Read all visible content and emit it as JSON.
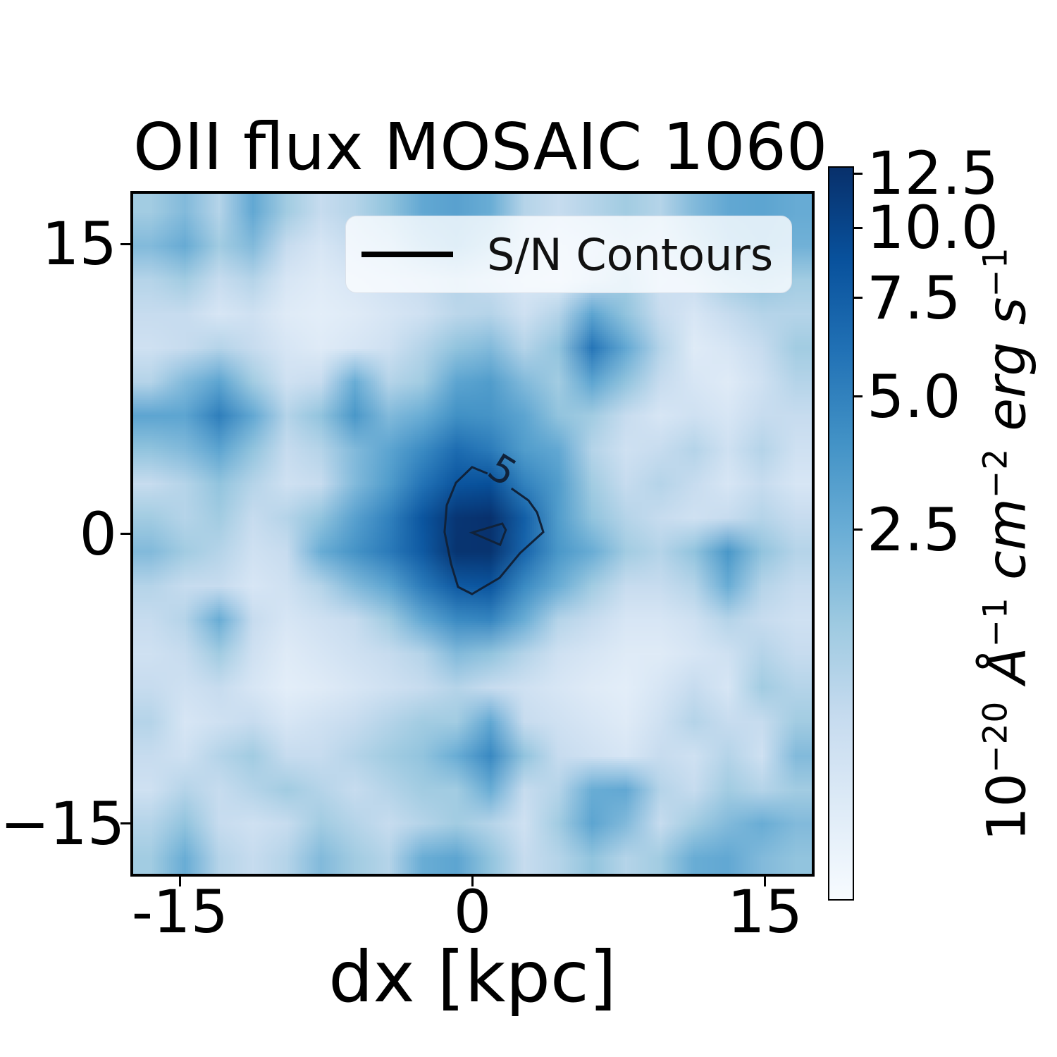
{
  "figure": {
    "title": "OII flux MOSAIC 1060",
    "background_color": "#ffffff"
  },
  "axes": {
    "xlabel": "dx [kpc]",
    "x_ticks": [
      {
        "label": "-15",
        "value": -15
      },
      {
        "label": "0",
        "value": 0
      },
      {
        "label": "15",
        "value": 15
      }
    ],
    "y_ticks": [
      {
        "label": "15",
        "value": 15
      },
      {
        "label": "0",
        "value": 0
      },
      {
        "label": "−15",
        "value": -15
      }
    ],
    "x_range": [
      -17.4,
      17.4
    ],
    "y_range": [
      -17.6,
      17.6
    ]
  },
  "legend": {
    "entries": [
      {
        "label": "S/N Contours",
        "marker": "line",
        "color": "#000000"
      }
    ]
  },
  "colorbar": {
    "tick_labels": [
      "12.5",
      "10.0",
      "7.5",
      "5.0",
      "2.5"
    ],
    "tick_values": [
      12.5,
      10.0,
      7.5,
      5.0,
      2.5
    ],
    "tick_fractions_from_top": [
      0.008,
      0.082,
      0.178,
      0.313,
      0.495
    ],
    "unit_parts": [
      {
        "text": "10",
        "italic": false,
        "sup": false
      },
      {
        "text": "−20",
        "italic": false,
        "sup": true
      },
      {
        "text": " ",
        "italic": false,
        "sup": false
      },
      {
        "text": "Å",
        "italic": true,
        "sup": false
      },
      {
        "text": "−1",
        "italic": false,
        "sup": true
      },
      {
        "text": " ",
        "italic": false,
        "sup": false
      },
      {
        "text": "cm",
        "italic": true,
        "sup": false
      },
      {
        "text": "−2",
        "italic": false,
        "sup": true
      },
      {
        "text": " ",
        "italic": false,
        "sup": false
      },
      {
        "text": "erg",
        "italic": true,
        "sup": false
      },
      {
        "text": " ",
        "italic": false,
        "sup": false
      },
      {
        "text": "s",
        "italic": true,
        "sup": false
      },
      {
        "text": "−1",
        "italic": false,
        "sup": true
      }
    ]
  },
  "chart_data": {
    "type": "heatmap",
    "title": "OII flux MOSAIC 1060",
    "xlabel": "dx [kpc]",
    "legend_label": "S/N Contours",
    "colormap": "Blues",
    "colormap_stops": [
      [
        0.0,
        "#f7fbff"
      ],
      [
        0.125,
        "#deebf7"
      ],
      [
        0.25,
        "#c6dbef"
      ],
      [
        0.375,
        "#9ecae1"
      ],
      [
        0.5,
        "#6baed6"
      ],
      [
        0.625,
        "#4292c6"
      ],
      [
        0.75,
        "#2171b5"
      ],
      [
        0.875,
        "#08519c"
      ],
      [
        1.0,
        "#08306b"
      ]
    ],
    "value_to_t_curve": [
      [
        0,
        0
      ],
      [
        2.5,
        0.505
      ],
      [
        5,
        0.687
      ],
      [
        7.5,
        0.822
      ],
      [
        10,
        0.918
      ],
      [
        12.5,
        0.992
      ],
      [
        13,
        1
      ]
    ],
    "vmax": 12.7,
    "flux_units": "1e-20 erg s^-1 cm^-2 A^-1",
    "x_extent": [
      -17.4,
      17.4
    ],
    "y_extent": [
      -17.6,
      17.6
    ],
    "grid_note": "rows top-to-bottom, 20x20 flux values read from image",
    "grid": [
      [
        1.8,
        2.2,
        1.5,
        2.8,
        1.8,
        1.2,
        1.5,
        2.0,
        2.8,
        3.2,
        2.5,
        1.5,
        1.2,
        1.5,
        1.8,
        1.5,
        2.2,
        2.8,
        3.0,
        2.6
      ],
      [
        2.2,
        2.6,
        1.8,
        2.2,
        1.2,
        0.8,
        1.2,
        1.5,
        2.2,
        2.6,
        2.0,
        1.2,
        0.8,
        1.0,
        1.4,
        1.2,
        1.8,
        2.4,
        2.8,
        2.4
      ],
      [
        1.5,
        1.8,
        1.2,
        1.5,
        0.8,
        0.6,
        0.8,
        1.0,
        1.2,
        1.5,
        1.2,
        0.8,
        0.6,
        1.2,
        1.8,
        1.0,
        1.2,
        1.8,
        2.0,
        1.8
      ],
      [
        1.2,
        1.2,
        0.8,
        1.0,
        0.6,
        0.5,
        0.6,
        0.8,
        1.0,
        1.4,
        1.5,
        1.0,
        1.5,
        3.0,
        2.0,
        1.2,
        0.8,
        1.2,
        1.5,
        1.5
      ],
      [
        1.0,
        1.2,
        1.5,
        1.2,
        0.8,
        0.6,
        0.8,
        1.0,
        1.5,
        2.0,
        2.2,
        1.5,
        2.0,
        5.8,
        2.8,
        1.5,
        0.6,
        0.8,
        1.2,
        1.8
      ],
      [
        1.5,
        2.2,
        3.0,
        1.8,
        1.0,
        1.2,
        2.5,
        1.5,
        1.8,
        3.0,
        3.5,
        2.2,
        1.8,
        3.0,
        2.0,
        1.2,
        0.8,
        0.6,
        1.0,
        1.5
      ],
      [
        3.0,
        3.0,
        5.2,
        2.8,
        1.5,
        2.0,
        3.8,
        2.2,
        2.5,
        4.2,
        4.0,
        3.0,
        2.0,
        1.8,
        1.2,
        0.8,
        1.0,
        0.8,
        1.2,
        1.2
      ],
      [
        2.0,
        2.2,
        3.0,
        2.0,
        1.2,
        1.5,
        2.2,
        3.0,
        4.5,
        6.5,
        5.5,
        3.5,
        2.8,
        1.5,
        1.0,
        1.2,
        1.5,
        1.0,
        1.5,
        1.0
      ],
      [
        1.2,
        1.5,
        2.0,
        1.5,
        1.0,
        1.2,
        2.2,
        3.5,
        6.0,
        8.5,
        9.0,
        5.0,
        3.5,
        1.8,
        1.2,
        1.5,
        1.2,
        0.8,
        1.2,
        0.8
      ],
      [
        1.8,
        1.5,
        1.8,
        1.2,
        1.5,
        2.0,
        3.2,
        5.0,
        8.5,
        12.0,
        12.7,
        7.5,
        3.5,
        2.0,
        1.5,
        1.2,
        1.0,
        1.2,
        1.5,
        1.2
      ],
      [
        2.2,
        1.8,
        1.5,
        1.0,
        1.2,
        2.5,
        4.0,
        5.5,
        8.0,
        12.3,
        12.3,
        7.0,
        3.8,
        2.5,
        1.8,
        1.5,
        2.0,
        3.8,
        2.0,
        1.5
      ],
      [
        1.5,
        1.2,
        1.2,
        0.8,
        1.0,
        1.5,
        2.2,
        3.0,
        5.5,
        8.0,
        8.5,
        4.5,
        2.5,
        1.8,
        1.2,
        1.2,
        1.5,
        2.5,
        1.5,
        1.2
      ],
      [
        1.2,
        1.5,
        2.5,
        1.2,
        0.8,
        1.0,
        1.2,
        1.8,
        2.8,
        4.5,
        4.8,
        2.5,
        1.5,
        1.2,
        0.8,
        0.8,
        1.0,
        1.5,
        1.2,
        1.0
      ],
      [
        1.0,
        1.2,
        1.8,
        1.0,
        0.6,
        0.8,
        1.0,
        1.2,
        1.5,
        2.2,
        2.0,
        1.5,
        1.0,
        0.8,
        0.6,
        0.6,
        0.8,
        1.0,
        1.5,
        1.2
      ],
      [
        1.2,
        1.0,
        1.2,
        0.8,
        0.5,
        0.6,
        0.8,
        1.0,
        1.2,
        1.5,
        1.2,
        1.0,
        0.8,
        0.6,
        0.5,
        0.8,
        1.2,
        0.8,
        1.8,
        1.5
      ],
      [
        1.5,
        0.8,
        1.0,
        1.2,
        0.8,
        1.0,
        1.2,
        1.5,
        1.8,
        1.8,
        2.8,
        1.2,
        1.0,
        0.8,
        0.6,
        1.0,
        1.5,
        1.2,
        1.2,
        1.8
      ],
      [
        1.2,
        1.0,
        1.5,
        1.8,
        1.2,
        1.2,
        1.5,
        1.8,
        2.0,
        2.5,
        4.6,
        2.0,
        1.2,
        1.0,
        0.8,
        1.2,
        1.0,
        1.5,
        1.0,
        2.2
      ],
      [
        1.0,
        1.5,
        1.2,
        1.5,
        1.8,
        1.5,
        1.2,
        1.5,
        1.8,
        1.8,
        2.5,
        1.2,
        1.5,
        2.5,
        2.8,
        1.5,
        1.2,
        1.8,
        1.5,
        1.8
      ],
      [
        1.5,
        2.0,
        1.2,
        1.0,
        1.2,
        1.8,
        1.5,
        1.2,
        1.5,
        1.8,
        1.5,
        1.0,
        1.8,
        3.0,
        2.2,
        1.2,
        1.8,
        2.2,
        2.5,
        2.2
      ],
      [
        1.8,
        2.5,
        1.5,
        1.2,
        1.5,
        2.2,
        1.8,
        1.5,
        2.5,
        3.0,
        2.0,
        1.2,
        1.5,
        2.0,
        1.5,
        1.8,
        2.5,
        2.8,
        2.2,
        2.0
      ]
    ],
    "contours": {
      "label": "5",
      "levels_sn": [
        5,
        10
      ],
      "line_color": "#10223a",
      "outer_polyline_kpc": [
        [
          0.77,
          3.12
        ],
        [
          -0.02,
          3.45
        ],
        [
          -0.85,
          2.64
        ],
        [
          -1.32,
          1.48
        ],
        [
          -1.43,
          0.09
        ],
        [
          -1.1,
          -1.55
        ],
        [
          -0.74,
          -2.75
        ],
        [
          -0.02,
          -3.12
        ],
        [
          1.39,
          -2.28
        ],
        [
          2.44,
          -1.0
        ],
        [
          3.63,
          0.09
        ],
        [
          3.31,
          1.11
        ],
        [
          2.87,
          1.73
        ],
        [
          2.0,
          2.35
        ]
      ],
      "inner_polygon_kpc": [
        [
          -0.02,
          0.06
        ],
        [
          1.53,
          0.53
        ],
        [
          1.71,
          0.2
        ],
        [
          1.42,
          -0.57
        ]
      ],
      "label_pos_kpc": [
        1.53,
        3.3
      ],
      "label_rotation_deg": 32
    }
  }
}
